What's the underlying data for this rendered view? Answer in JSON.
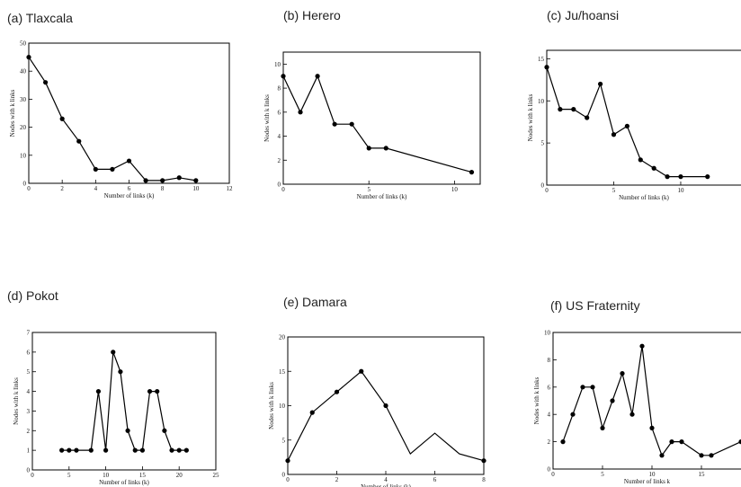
{
  "chart_data": [
    {
      "type": "line",
      "title": "(a) Tlaxcala",
      "xlabel": "Number of links (k)",
      "ylabel": "Nodes with k links",
      "xlim": [
        0,
        12
      ],
      "ylim": [
        0,
        50
      ],
      "xticks": [
        0,
        2,
        4,
        6,
        8,
        10,
        12
      ],
      "yticks": [
        0,
        10,
        20,
        30,
        40,
        50
      ],
      "markers": true,
      "x": [
        0,
        1,
        2,
        3,
        4,
        5,
        6,
        7,
        8,
        9,
        10
      ],
      "y": [
        45,
        36,
        23,
        15,
        5,
        5,
        8,
        1,
        1,
        2,
        1
      ]
    },
    {
      "type": "line",
      "title": "(b) Herero",
      "xlabel": "Number of links (k)",
      "ylabel": "Nodes with k links",
      "xlim": [
        0,
        11.5
      ],
      "ylim": [
        0,
        11
      ],
      "xticks": [
        0,
        5,
        10
      ],
      "yticks": [
        0,
        2,
        4,
        6,
        8,
        10
      ],
      "markers": true,
      "x": [
        0,
        1,
        2,
        3,
        4,
        5,
        6,
        11
      ],
      "y": [
        9,
        6,
        9,
        5,
        5,
        3,
        3,
        1
      ]
    },
    {
      "type": "line",
      "title": "(c) Ju/hoansi",
      "xlabel": "Number of links (k)",
      "ylabel": "Nodes with k links",
      "xlim": [
        0,
        14.5
      ],
      "ylim": [
        0,
        16
      ],
      "xticks": [
        0,
        5,
        10
      ],
      "yticks": [
        0,
        5,
        10,
        15
      ],
      "markers": true,
      "x": [
        0,
        1,
        2,
        3,
        4,
        5,
        6,
        7,
        8,
        9,
        10,
        12
      ],
      "y": [
        14,
        9,
        9,
        8,
        12,
        6,
        7,
        3,
        2,
        1,
        1,
        1
      ]
    },
    {
      "type": "line",
      "title": "(d) Pokot",
      "xlabel": "Number of links (k)",
      "ylabel": "Nodes with k links",
      "xlim": [
        0,
        25
      ],
      "ylim": [
        0,
        7
      ],
      "xticks": [
        0,
        5,
        10,
        15,
        20,
        25
      ],
      "yticks": [
        0,
        1,
        2,
        3,
        4,
        5,
        6,
        7
      ],
      "markers": true,
      "x": [
        4,
        5,
        6,
        8,
        9,
        10,
        11,
        12,
        13,
        14,
        15,
        16,
        17,
        18,
        19,
        20,
        21
      ],
      "y": [
        1,
        1,
        1,
        1,
        4,
        1,
        6,
        5,
        2,
        1,
        1,
        4,
        4,
        2,
        1,
        1,
        1
      ]
    },
    {
      "type": "line",
      "title": "(e) Damara",
      "xlabel": "Number of links (k)",
      "ylabel": "Nodes with k links",
      "xlim": [
        0,
        8
      ],
      "ylim": [
        0,
        20
      ],
      "xticks": [
        0,
        2,
        4,
        6,
        8
      ],
      "yticks": [
        0,
        5,
        10,
        15,
        20
      ],
      "markers": false,
      "x": [
        0,
        1,
        2,
        3,
        4,
        5,
        6,
        7,
        8
      ],
      "y": [
        2,
        9,
        12,
        15,
        10,
        3,
        6,
        3,
        2
      ],
      "marked_points": [
        0,
        1,
        2,
        3,
        4,
        8
      ]
    },
    {
      "type": "line",
      "title": "(f) US Fraternity",
      "xlabel": "Number of links k",
      "ylabel": "Nodes with k links",
      "xlim": [
        0,
        19
      ],
      "ylim": [
        0,
        10
      ],
      "xticks": [
        0,
        5,
        10,
        15
      ],
      "yticks": [
        0,
        2,
        4,
        6,
        8,
        10
      ],
      "markers": true,
      "x": [
        1,
        2,
        3,
        4,
        5,
        6,
        7,
        8,
        9,
        10,
        11,
        12,
        13,
        15,
        16,
        19
      ],
      "y": [
        2,
        4,
        6,
        6,
        3,
        5,
        7,
        4,
        9,
        3,
        1,
        2,
        2,
        1,
        1,
        2
      ]
    }
  ]
}
